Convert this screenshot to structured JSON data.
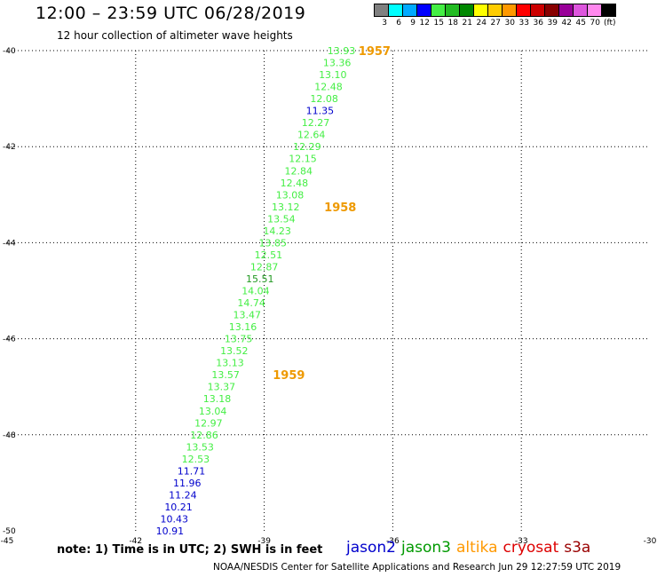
{
  "header": {
    "title": "12:00 – 23:59 UTC 06/28/2019",
    "subtitle": "12 hour collection of altimeter wave heights"
  },
  "scale": {
    "labels": [
      "3",
      "6",
      "9",
      "12",
      "15",
      "18",
      "21",
      "24",
      "27",
      "30",
      "33",
      "36",
      "39",
      "42",
      "45",
      "70"
    ],
    "unit": "(ft)",
    "colors": [
      "#808080",
      "#00ffff",
      "#00aaff",
      "#0000ff",
      "#44ee44",
      "#22bb22",
      "#008800",
      "#ffff00",
      "#ffcc00",
      "#ff9900",
      "#ff0000",
      "#cc0000",
      "#880000",
      "#990099",
      "#dd55dd",
      "#ff88ee",
      "#000000"
    ]
  },
  "chart_data": {
    "type": "scatter",
    "title": "12:00 – 23:59 UTC 06/28/2019",
    "subtitle": "12 hour collection of altimeter wave heights",
    "xlim": [
      -45,
      -30
    ],
    "ylim": [
      -50,
      -40
    ],
    "x_ticks": [
      "-45",
      "-42",
      "-39",
      "-36",
      "-33",
      "-30"
    ],
    "y_ticks": [
      "-40",
      "-42",
      "-44",
      "-46",
      "-48",
      "-50"
    ],
    "grid": true,
    "points": [
      {
        "lon": -37.2,
        "lat": -40.0,
        "label": "13.93",
        "color": "#44ee44"
      },
      {
        "lon": -37.3,
        "lat": -40.25,
        "label": "13.36",
        "color": "#44ee44"
      },
      {
        "lon": -37.4,
        "lat": -40.5,
        "label": "13.10",
        "color": "#44ee44"
      },
      {
        "lon": -37.5,
        "lat": -40.75,
        "label": "12.48",
        "color": "#44ee44"
      },
      {
        "lon": -37.6,
        "lat": -41.0,
        "label": "12.08",
        "color": "#44ee44"
      },
      {
        "lon": -37.7,
        "lat": -41.25,
        "label": "11.35",
        "color": "#0000cc"
      },
      {
        "lon": -37.8,
        "lat": -41.5,
        "label": "12.27",
        "color": "#44ee44"
      },
      {
        "lon": -37.9,
        "lat": -41.75,
        "label": "12.64",
        "color": "#44ee44"
      },
      {
        "lon": -38.0,
        "lat": -42.0,
        "label": "12.29",
        "color": "#44ee44"
      },
      {
        "lon": -38.1,
        "lat": -42.25,
        "label": "12.15",
        "color": "#44ee44"
      },
      {
        "lon": -38.2,
        "lat": -42.5,
        "label": "12.84",
        "color": "#44ee44"
      },
      {
        "lon": -38.3,
        "lat": -42.75,
        "label": "12.48",
        "color": "#44ee44"
      },
      {
        "lon": -38.4,
        "lat": -43.0,
        "label": "13.08",
        "color": "#44ee44"
      },
      {
        "lon": -38.5,
        "lat": -43.25,
        "label": "13.12",
        "color": "#44ee44"
      },
      {
        "lon": -38.6,
        "lat": -43.5,
        "label": "13.54",
        "color": "#44ee44"
      },
      {
        "lon": -38.7,
        "lat": -43.75,
        "label": "14.23",
        "color": "#44ee44"
      },
      {
        "lon": -38.8,
        "lat": -44.0,
        "label": "13.85",
        "color": "#44ee44"
      },
      {
        "lon": -38.9,
        "lat": -44.25,
        "label": "12.51",
        "color": "#44ee44"
      },
      {
        "lon": -39.0,
        "lat": -44.5,
        "label": "12.87",
        "color": "#44ee44"
      },
      {
        "lon": -39.1,
        "lat": -44.75,
        "label": "15.51",
        "color": "#229922"
      },
      {
        "lon": -39.2,
        "lat": -45.0,
        "label": "14.04",
        "color": "#44ee44"
      },
      {
        "lon": -39.3,
        "lat": -45.25,
        "label": "14.74",
        "color": "#44ee44"
      },
      {
        "lon": -39.4,
        "lat": -45.5,
        "label": "13.47",
        "color": "#44ee44"
      },
      {
        "lon": -39.5,
        "lat": -45.75,
        "label": "13.16",
        "color": "#44ee44"
      },
      {
        "lon": -39.6,
        "lat": -46.0,
        "label": "13.75",
        "color": "#44ee44"
      },
      {
        "lon": -39.7,
        "lat": -46.25,
        "label": "13.52",
        "color": "#44ee44"
      },
      {
        "lon": -39.8,
        "lat": -46.5,
        "label": "13.13",
        "color": "#44ee44"
      },
      {
        "lon": -39.9,
        "lat": -46.75,
        "label": "13.57",
        "color": "#44ee44"
      },
      {
        "lon": -40.0,
        "lat": -47.0,
        "label": "13.37",
        "color": "#44ee44"
      },
      {
        "lon": -40.1,
        "lat": -47.25,
        "label": "13.18",
        "color": "#44ee44"
      },
      {
        "lon": -40.2,
        "lat": -47.5,
        "label": "13.04",
        "color": "#44ee44"
      },
      {
        "lon": -40.3,
        "lat": -47.75,
        "label": "12.97",
        "color": "#44ee44"
      },
      {
        "lon": -40.4,
        "lat": -48.0,
        "label": "12.86",
        "color": "#44ee44"
      },
      {
        "lon": -40.5,
        "lat": -48.25,
        "label": "13.53",
        "color": "#44ee44"
      },
      {
        "lon": -40.6,
        "lat": -48.5,
        "label": "12.53",
        "color": "#44ee44"
      },
      {
        "lon": -40.7,
        "lat": -48.75,
        "label": "11.71",
        "color": "#0000cc"
      },
      {
        "lon": -40.8,
        "lat": -49.0,
        "label": "11.96",
        "color": "#0000cc"
      },
      {
        "lon": -40.9,
        "lat": -49.25,
        "label": "11.24",
        "color": "#0000cc"
      },
      {
        "lon": -41.0,
        "lat": -49.5,
        "label": "10.21",
        "color": "#0000cc"
      },
      {
        "lon": -41.1,
        "lat": -49.75,
        "label": "10.43",
        "color": "#0000cc"
      },
      {
        "lon": -41.2,
        "lat": -50.0,
        "label": "10.91",
        "color": "#0000cc"
      }
    ],
    "time_markers": [
      {
        "lon": -36.8,
        "lat": -40.0,
        "label": "1957"
      },
      {
        "lon": -37.6,
        "lat": -43.25,
        "label": "1958"
      },
      {
        "lon": -38.8,
        "lat": -46.75,
        "label": "1959"
      }
    ],
    "time_marker_color": "#ee9900"
  },
  "note": "note:  1) Time is in UTC;  2) SWH is in feet",
  "satellites": [
    {
      "name": "jason2",
      "color": "#0000cc"
    },
    {
      "name": "jason3",
      "color": "#009900"
    },
    {
      "name": "altika",
      "color": "#ff9900"
    },
    {
      "name": "cryosat",
      "color": "#dd0000"
    },
    {
      "name": "s3a",
      "color": "#990000"
    }
  ],
  "footer": "NOAA/NESDIS Center for Satellite Applications and Research    Jun 29 12:27:59 UTC 2019"
}
